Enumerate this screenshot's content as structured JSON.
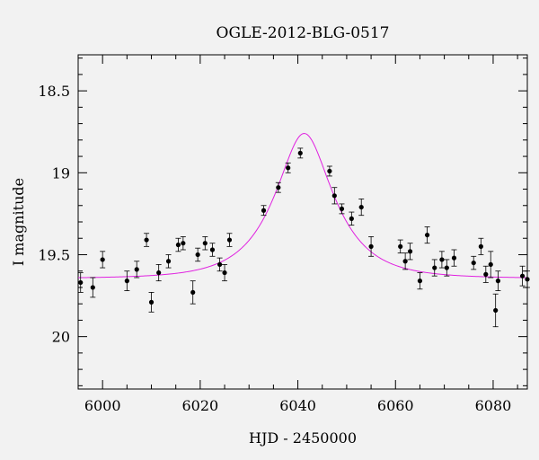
{
  "chart_data": {
    "type": "scatter",
    "title": "OGLE-2012-BLG-0517",
    "xlabel": "HJD - 2450000",
    "ylabel": "I magnitude",
    "xlim": [
      5995,
      6087
    ],
    "ylim": [
      20.32,
      18.28
    ],
    "y_inverted": true,
    "grid": false,
    "x_major_ticks": [
      6000,
      6020,
      6040,
      6060,
      6080
    ],
    "x_tick_labels": [
      "6000",
      "6020",
      "6040",
      "6060",
      "6080"
    ],
    "y_major_ticks": [
      18.5,
      19,
      19.5,
      20
    ],
    "y_tick_labels": [
      "18.5",
      "19",
      "19.5",
      "20"
    ],
    "colors": {
      "points": "#000000",
      "model": "#e020e0",
      "background": "#f2f2f2"
    },
    "series": [
      {
        "type": "scatter_errorbars",
        "x": [
          5995.5,
          5998.0,
          6000.0,
          6005.0,
          6007.0,
          6009.0,
          6010.0,
          6011.5,
          6013.5,
          6015.5,
          6016.5,
          6018.5,
          6019.5,
          6021.0,
          6022.5,
          6024.0,
          6025.0,
          6026.0,
          6033.0,
          6036.0,
          6038.0,
          6040.5,
          6046.5,
          6047.5,
          6049.0,
          6051.0,
          6053.0,
          6055.0,
          6061.0,
          6062.0,
          6063.0,
          6065.0,
          6066.5,
          6068.0,
          6069.5,
          6070.5,
          6072.0,
          6076.0,
          6077.5,
          6078.5,
          6079.5,
          6080.5,
          6081.0,
          6086.0,
          6087.0
        ],
        "y": [
          19.67,
          19.7,
          19.53,
          19.66,
          19.59,
          19.41,
          19.79,
          19.61,
          19.54,
          19.44,
          19.43,
          19.73,
          19.5,
          19.43,
          19.47,
          19.56,
          19.61,
          19.41,
          19.23,
          19.09,
          18.97,
          18.88,
          18.99,
          19.14,
          19.22,
          19.28,
          19.21,
          19.45,
          19.45,
          19.54,
          19.48,
          19.66,
          19.38,
          19.58,
          19.53,
          19.58,
          19.52,
          19.55,
          19.45,
          19.62,
          19.56,
          19.84,
          19.66,
          19.63,
          19.65
        ],
        "err": [
          0.06,
          0.06,
          0.05,
          0.06,
          0.05,
          0.04,
          0.06,
          0.05,
          0.04,
          0.04,
          0.04,
          0.07,
          0.04,
          0.04,
          0.04,
          0.04,
          0.05,
          0.04,
          0.03,
          0.03,
          0.03,
          0.03,
          0.03,
          0.05,
          0.03,
          0.04,
          0.05,
          0.06,
          0.04,
          0.05,
          0.05,
          0.05,
          0.05,
          0.05,
          0.05,
          0.05,
          0.05,
          0.04,
          0.05,
          0.05,
          0.08,
          0.1,
          0.06,
          0.06,
          0.05
        ]
      },
      {
        "type": "line",
        "model": "microlensing_fit",
        "t0": 6041.3,
        "tE": 10.5,
        "u0": 0.48,
        "baseline_mag": 19.645
      }
    ]
  }
}
